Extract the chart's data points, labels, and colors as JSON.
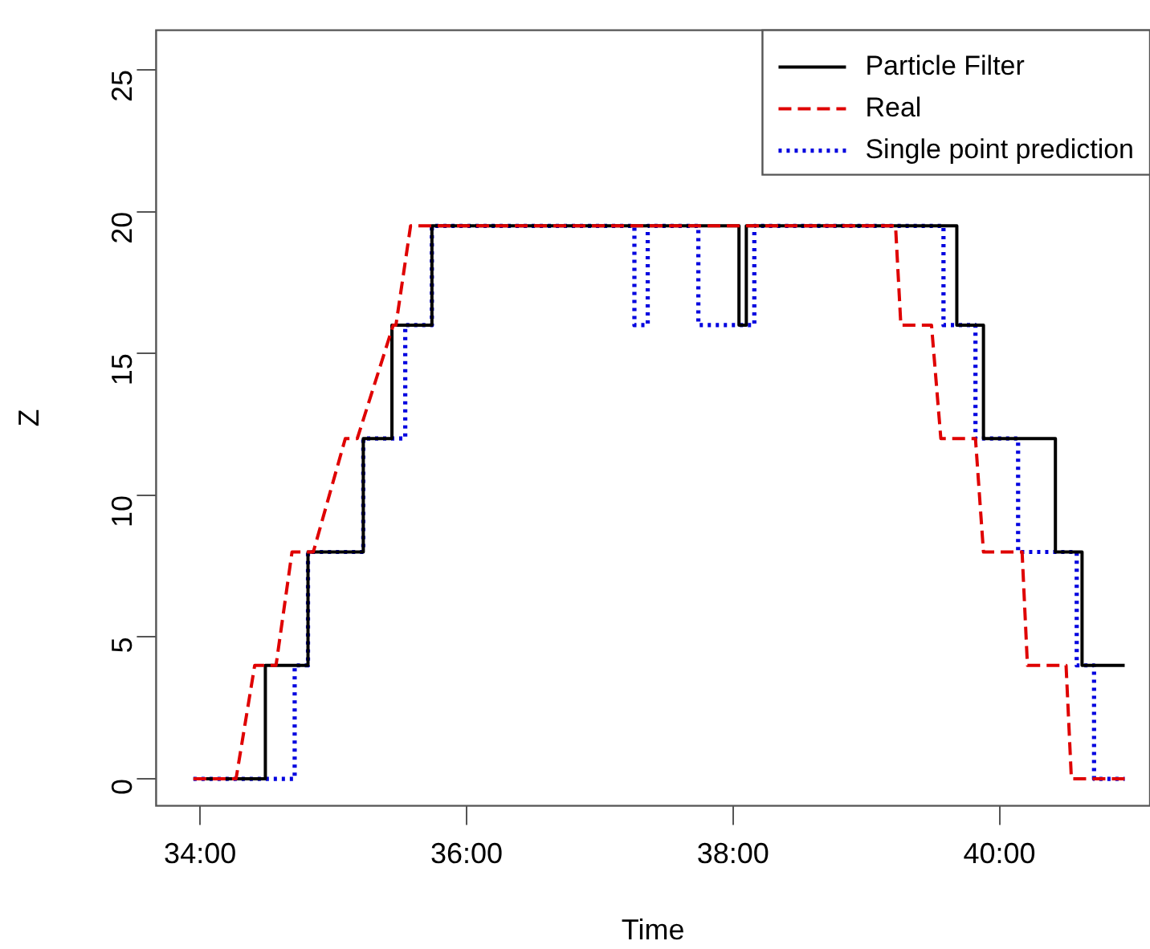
{
  "chart_data": {
    "type": "line",
    "xlabel": "Time",
    "ylabel": "Z",
    "xlim": [
      33.67,
      41.13
    ],
    "xticks": [
      {
        "value": 34,
        "label": "34:00"
      },
      {
        "value": 36,
        "label": "36:00"
      },
      {
        "value": 38,
        "label": "38:00"
      },
      {
        "value": 40,
        "label": "40:00"
      }
    ],
    "ylim": [
      -0.95,
      26.4
    ],
    "yticks": [
      0,
      5,
      10,
      15,
      20,
      25
    ],
    "grid": false,
    "legend": "top right",
    "marker": "none",
    "series": [
      {
        "name": "Particle Filter",
        "type": "step",
        "line_style": "solid",
        "color": "#000000",
        "x": [
          33.95,
          34.49,
          34.81,
          35.225,
          35.44,
          35.74,
          38.045,
          38.1,
          39.68,
          39.88,
          40.42,
          40.62,
          40.94
        ],
        "values": [
          0,
          4,
          8,
          12,
          16,
          19.5,
          16,
          19.5,
          16,
          12,
          8,
          4,
          4
        ]
      },
      {
        "name": "Real",
        "type": "line",
        "line_style": "dashed",
        "color": "#df0000",
        "x": [
          33.95,
          34.27,
          34.41,
          34.57,
          34.69,
          34.85,
          35.09,
          35.18,
          35.45,
          35.47,
          35.58,
          39.22,
          39.26,
          39.49,
          39.56,
          39.82,
          39.88,
          40.17,
          40.21,
          40.5,
          40.54,
          40.94
        ],
        "values": [
          0,
          0,
          4,
          4,
          8,
          8,
          12,
          12,
          16,
          16,
          19.5,
          19.5,
          16,
          16,
          12,
          12,
          8,
          8,
          4,
          4,
          0,
          0
        ]
      },
      {
        "name": "Single point prediction",
        "type": "step",
        "line_style": "dotted",
        "color": "#0000df",
        "x": [
          33.95,
          34.71,
          34.81,
          35.225,
          35.54,
          35.74,
          37.26,
          37.36,
          37.74,
          38.16,
          39.58,
          39.82,
          40.14,
          40.58,
          40.71,
          40.94
        ],
        "values": [
          0,
          4,
          8,
          12,
          16,
          19.5,
          16,
          19.5,
          16,
          19.5,
          16,
          12,
          8,
          4,
          0,
          0
        ]
      }
    ]
  }
}
